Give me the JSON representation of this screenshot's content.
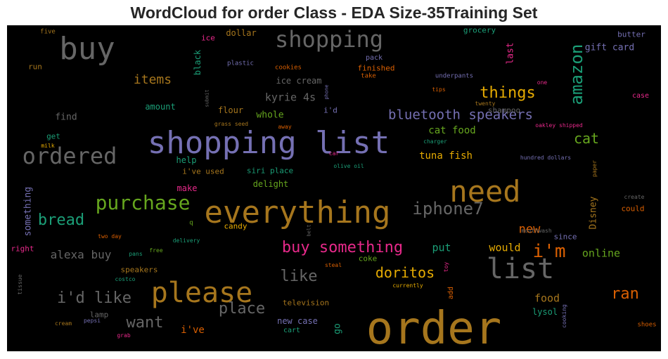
{
  "title": "WordCloud for order Class - EDA Size-35Training Set",
  "colors": {
    "background": "#000000",
    "palette": [
      "#1b9e77",
      "#d95f02",
      "#7570b3",
      "#e7298a",
      "#66a61e",
      "#e6ab02",
      "#a6761d",
      "#666666"
    ]
  },
  "words": [
    {
      "text": "shopping list",
      "c": "#7570b3"
    },
    {
      "text": "everything",
      "c": "#a6761d"
    },
    {
      "text": "order",
      "c": "#a6761d"
    },
    {
      "text": "please",
      "c": "#a6761d"
    },
    {
      "text": "need",
      "c": "#a6761d"
    },
    {
      "text": "buy",
      "c": "#666666"
    },
    {
      "text": "shopping",
      "c": "#666666"
    },
    {
      "text": "ordered",
      "c": "#666666"
    },
    {
      "text": "list",
      "c": "#666666"
    },
    {
      "text": "amazon",
      "c": "#1b9e77"
    },
    {
      "text": "purchase",
      "c": "#66a61e"
    },
    {
      "text": "iphone7",
      "c": "#666666"
    },
    {
      "text": "i'm",
      "c": "#d95f02"
    },
    {
      "text": "buy something",
      "c": "#e7298a"
    },
    {
      "text": "things",
      "c": "#e6ab02"
    },
    {
      "text": "bluetooth speakers",
      "c": "#7570b3"
    },
    {
      "text": "i'd like",
      "c": "#666666"
    },
    {
      "text": "bread",
      "c": "#1b9e77"
    },
    {
      "text": "cat",
      "c": "#66a61e"
    },
    {
      "text": "ran",
      "c": "#d95f02"
    },
    {
      "text": "like",
      "c": "#666666"
    },
    {
      "text": "want",
      "c": "#666666"
    },
    {
      "text": "place",
      "c": "#666666"
    },
    {
      "text": "doritos",
      "c": "#e6ab02"
    },
    {
      "text": "items",
      "c": "#a6761d"
    },
    {
      "text": "kyrie 4s",
      "c": "#666666"
    },
    {
      "text": "new",
      "c": "#d95f02"
    },
    {
      "text": "alexa buy",
      "c": "#666666"
    },
    {
      "text": "would",
      "c": "#e6ab02"
    },
    {
      "text": "online",
      "c": "#66a61e"
    },
    {
      "text": "put",
      "c": "#1b9e77"
    },
    {
      "text": "food",
      "c": "#a6761d"
    },
    {
      "text": "i've",
      "c": "#d95f02"
    },
    {
      "text": "cat food",
      "c": "#66a61e"
    },
    {
      "text": "tuna fish",
      "c": "#e6ab02"
    },
    {
      "text": "whole",
      "c": "#66a61e"
    },
    {
      "text": "ice cream",
      "c": "#666666"
    },
    {
      "text": "find",
      "c": "#666666"
    },
    {
      "text": "something",
      "c": "#7570b3"
    },
    {
      "text": "Disney",
      "c": "#a6761d"
    },
    {
      "text": "gift card",
      "c": "#7570b3"
    },
    {
      "text": "last",
      "c": "#e7298a"
    },
    {
      "text": "black",
      "c": "#1b9e77"
    },
    {
      "text": "dollar",
      "c": "#a6761d"
    },
    {
      "text": "finished",
      "c": "#d95f02"
    },
    {
      "text": "grocery",
      "c": "#1b9e77"
    },
    {
      "text": "butter",
      "c": "#7570b3"
    },
    {
      "text": "pack",
      "c": "#7570b3"
    },
    {
      "text": "run",
      "c": "#a6761d"
    },
    {
      "text": "amount",
      "c": "#1b9e77"
    },
    {
      "text": "flour",
      "c": "#a6761d"
    },
    {
      "text": "i'd",
      "c": "#7570b3"
    },
    {
      "text": "shampoo",
      "c": "#666666"
    },
    {
      "text": "help",
      "c": "#1b9e77"
    },
    {
      "text": "i've used",
      "c": "#a6761d"
    },
    {
      "text": "siri place",
      "c": "#1b9e77"
    },
    {
      "text": "delight",
      "c": "#66a61e"
    },
    {
      "text": "make",
      "c": "#e7298a"
    },
    {
      "text": "candy",
      "c": "#e6ab02"
    },
    {
      "text": "since",
      "c": "#7570b3"
    },
    {
      "text": "lysol",
      "c": "#1b9e77"
    },
    {
      "text": "new case",
      "c": "#7570b3"
    },
    {
      "text": "go",
      "c": "#1b9e77"
    },
    {
      "text": "could",
      "c": "#d95f02"
    },
    {
      "text": "get",
      "c": "#1b9e77"
    },
    {
      "text": "coke",
      "c": "#66a61e"
    },
    {
      "text": "speakers",
      "c": "#a6761d"
    },
    {
      "text": "television",
      "c": "#a6761d"
    },
    {
      "text": "cart",
      "c": "#1b9e77"
    },
    {
      "text": "add",
      "c": "#d95f02"
    },
    {
      "text": "case",
      "c": "#e7298a"
    },
    {
      "text": "lamp",
      "c": "#666666"
    },
    {
      "text": "right",
      "c": "#e7298a"
    },
    {
      "text": "ice",
      "c": "#e7298a"
    },
    {
      "text": "five",
      "c": "#a6761d"
    },
    {
      "text": "plastic",
      "c": "#7570b3"
    },
    {
      "text": "cookies",
      "c": "#d95f02"
    },
    {
      "text": "underpants",
      "c": "#7570b3"
    },
    {
      "text": "take",
      "c": "#d95f02"
    },
    {
      "text": "tips",
      "c": "#d95f02"
    },
    {
      "text": "one",
      "c": "#e7298a"
    },
    {
      "text": "twenty",
      "c": "#a6761d"
    },
    {
      "text": "submit",
      "c": "#666666"
    },
    {
      "text": "phone",
      "c": "#7570b3"
    },
    {
      "text": "grass seed",
      "c": "#a6761d"
    },
    {
      "text": "away",
      "c": "#d95f02"
    },
    {
      "text": "oakley shipped",
      "c": "#e7298a"
    },
    {
      "text": "charger",
      "c": "#1b9e77"
    },
    {
      "text": "milk",
      "c": "#e6ab02"
    },
    {
      "text": "car",
      "c": "#e7298a"
    },
    {
      "text": "olive oil",
      "c": "#1b9e77"
    },
    {
      "text": "hundred dollars",
      "c": "#7570b3"
    },
    {
      "text": "paper",
      "c": "#a6761d"
    },
    {
      "text": "create",
      "c": "#666666"
    },
    {
      "text": "mouthwash",
      "c": "#666666"
    },
    {
      "text": "q",
      "c": "#66a61e"
    },
    {
      "text": "belt",
      "c": "#666666"
    },
    {
      "text": "two day",
      "c": "#d95f02"
    },
    {
      "text": "delivery",
      "c": "#1b9e77"
    },
    {
      "text": "free",
      "c": "#66a61e"
    },
    {
      "text": "pans",
      "c": "#1b9e77"
    },
    {
      "text": "costco",
      "c": "#1b9e77"
    },
    {
      "text": "steal",
      "c": "#d95f02"
    },
    {
      "text": "toy",
      "c": "#e7298a"
    },
    {
      "text": "currently",
      "c": "#e6ab02"
    },
    {
      "text": "tissue",
      "c": "#666666"
    },
    {
      "text": "cream",
      "c": "#a6761d"
    },
    {
      "text": "pepsi",
      "c": "#7570b3"
    },
    {
      "text": "grab",
      "c": "#e7298a"
    },
    {
      "text": "cooking",
      "c": "#7570b3"
    },
    {
      "text": "shoes",
      "c": "#d95f02"
    }
  ]
}
